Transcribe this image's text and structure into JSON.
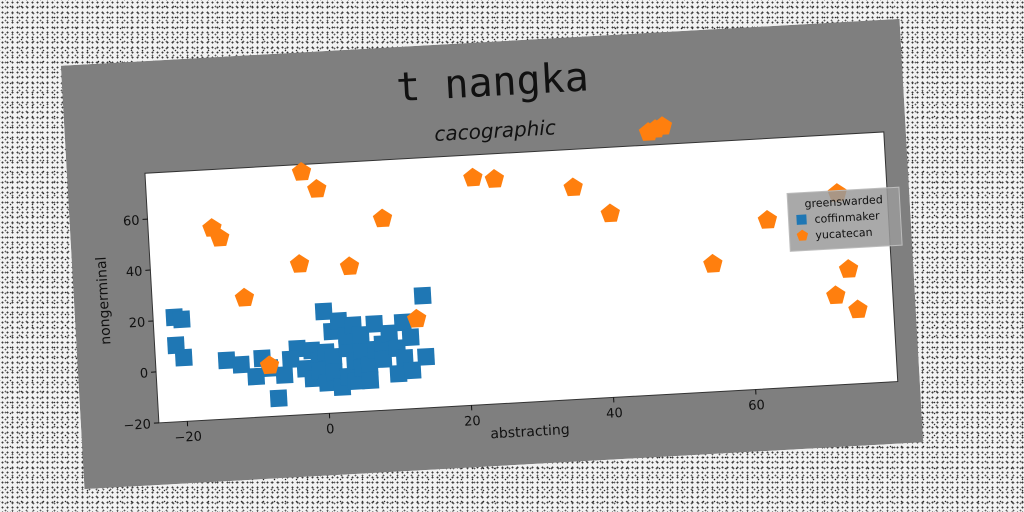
{
  "figure": {
    "background": "#7f7f7f",
    "title": "t nangka"
  },
  "chart_data": {
    "type": "scatter",
    "title": "cacographic",
    "xlabel": "abstracting",
    "ylabel": "nongerminal",
    "xlim": [
      -24,
      80
    ],
    "ylim": [
      -20,
      78
    ],
    "xticks": [
      -20,
      0,
      20,
      40,
      60
    ],
    "yticks": [
      -20,
      0,
      20,
      40,
      60
    ],
    "grid": false,
    "legend": {
      "title": "greenswarded",
      "position": "right"
    },
    "series": [
      {
        "name": "coffinmaker",
        "marker": "square",
        "color": "#1f77b4",
        "points": [
          [
            -21,
            21
          ],
          [
            -20,
            20
          ],
          [
            -21,
            10
          ],
          [
            -20,
            5
          ],
          [
            -14,
            3
          ],
          [
            -12,
            1
          ],
          [
            -10,
            -4
          ],
          [
            -9,
            3
          ],
          [
            -8,
            -1
          ],
          [
            -7,
            -13
          ],
          [
            -6,
            -4
          ],
          [
            -4,
            6
          ],
          [
            -3,
            -2
          ],
          [
            -2,
            -6
          ],
          [
            -2,
            5
          ],
          [
            -1,
            1
          ],
          [
            -1,
            -3
          ],
          [
            0,
            4
          ],
          [
            0,
            -8
          ],
          [
            0,
            20
          ],
          [
            1,
            12
          ],
          [
            1,
            2
          ],
          [
            1,
            -4
          ],
          [
            2,
            -10
          ],
          [
            2,
            16
          ],
          [
            3,
            5
          ],
          [
            3,
            -6
          ],
          [
            3,
            10
          ],
          [
            4,
            0
          ],
          [
            4,
            -8
          ],
          [
            4,
            14
          ],
          [
            5,
            4
          ],
          [
            5,
            -3
          ],
          [
            5,
            10
          ],
          [
            6,
            -2
          ],
          [
            6,
            -8
          ],
          [
            7,
            14
          ],
          [
            7,
            4
          ],
          [
            8,
            6
          ],
          [
            8,
            0
          ],
          [
            9,
            10
          ],
          [
            10,
            4
          ],
          [
            10,
            -6
          ],
          [
            11,
            14
          ],
          [
            11,
            0
          ],
          [
            12,
            -5
          ],
          [
            12,
            8
          ],
          [
            14,
            0
          ],
          [
            14,
            24
          ],
          [
            -5,
            2
          ]
        ]
      },
      {
        "name": "yucatecan",
        "marker": "pentagon",
        "color": "#ff7f0e",
        "points": [
          [
            -2,
            75
          ],
          [
            0,
            68
          ],
          [
            -15,
            55
          ],
          [
            -14,
            51
          ],
          [
            -3,
            39
          ],
          [
            4,
            37
          ],
          [
            -11,
            27
          ],
          [
            9,
            55
          ],
          [
            -8,
            0
          ],
          [
            13,
            15
          ],
          [
            22,
            69
          ],
          [
            25,
            68
          ],
          [
            36,
            63
          ],
          [
            41,
            52
          ],
          [
            47,
            83
          ],
          [
            48,
            84
          ],
          [
            49,
            85
          ],
          [
            55,
            30
          ],
          [
            63,
            46
          ],
          [
            72,
            15
          ],
          [
            73,
            55
          ],
          [
            74,
            25
          ],
          [
            75,
            9
          ]
        ]
      }
    ]
  }
}
